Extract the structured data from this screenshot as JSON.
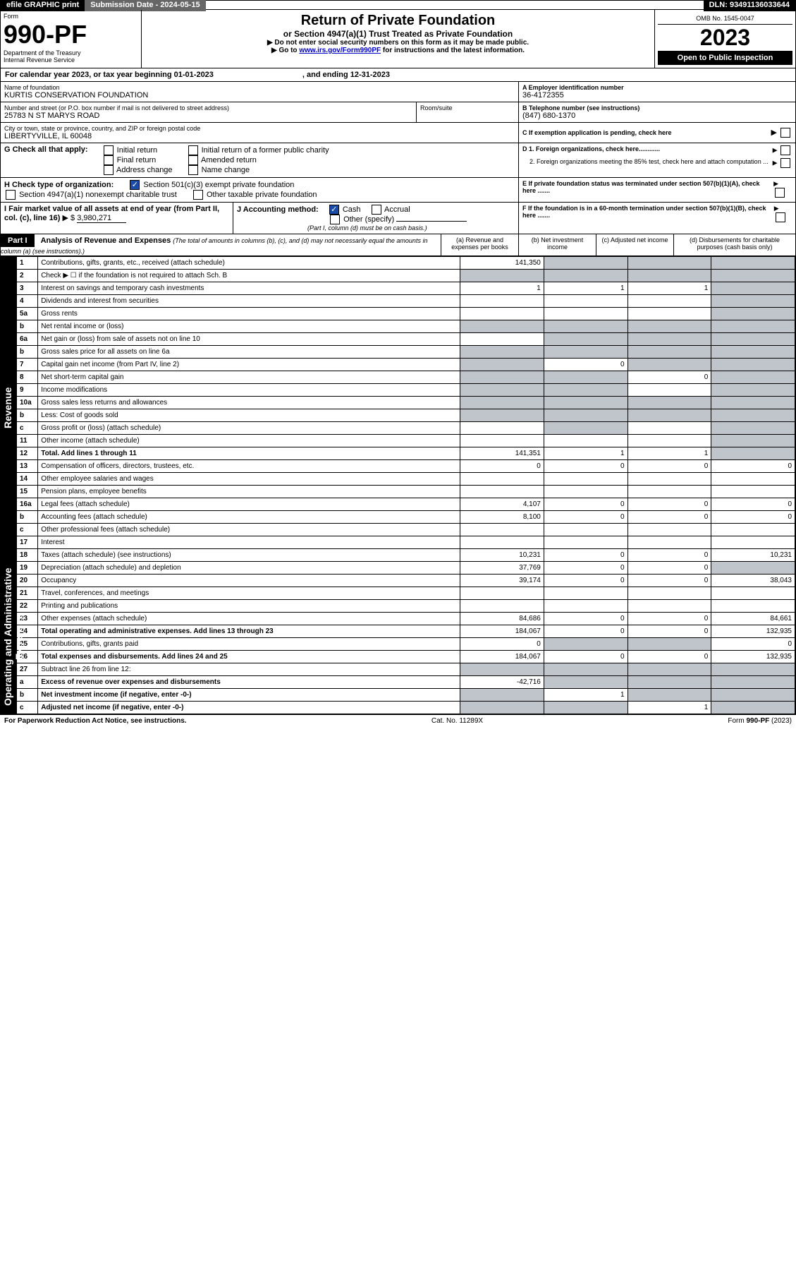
{
  "top": {
    "efile": "efile GRAPHIC print",
    "submission_label": "Submission Date - 2024-05-15",
    "dln_label": "DLN: 93491136033644"
  },
  "header": {
    "form_word": "Form",
    "form_no": "990-PF",
    "dept": "Department of the Treasury",
    "irs": "Internal Revenue Service",
    "title": "Return of Private Foundation",
    "subtitle": "or Section 4947(a)(1) Trust Treated as Private Foundation",
    "inst1": "▶ Do not enter social security numbers on this form as it may be made public.",
    "inst2_pre": "▶ Go to ",
    "inst2_link": "www.irs.gov/Form990PF",
    "inst2_post": " for instructions and the latest information.",
    "omb": "OMB No. 1545-0047",
    "year": "2023",
    "open": "Open to Public Inspection"
  },
  "cal": {
    "text": "For calendar year 2023, or tax year beginning 01-01-2023",
    "mid": ", and ending 12-31-2023"
  },
  "block_a": {
    "name_lbl": "Name of foundation",
    "name": "KURTIS CONSERVATION FOUNDATION",
    "a_lbl": "A Employer identification number",
    "ein": "36-4172355",
    "addr_lbl": "Number and street (or P.O. box number if mail is not delivered to street address)",
    "room_lbl": "Room/suite",
    "addr": "25783 N ST MARYS ROAD",
    "b_lbl": "B Telephone number (see instructions)",
    "phone": "(847) 680-1370",
    "city_lbl": "City or town, state or province, country, and ZIP or foreign postal code",
    "city": "LIBERTYVILLE, IL  60048",
    "c_lbl": "C If exemption application is pending, check here"
  },
  "g": {
    "label": "G Check all that apply:",
    "o1": "Initial return",
    "o2": "Final return",
    "o3": "Address change",
    "o4": "Initial return of a former public charity",
    "o5": "Amended return",
    "o6": "Name change"
  },
  "d": {
    "d1": "D 1. Foreign organizations, check here............",
    "d2": "2. Foreign organizations meeting the 85% test, check here and attach computation ..."
  },
  "h": {
    "label": "H Check type of organization:",
    "h1": "Section 501(c)(3) exempt private foundation",
    "h2": "Section 4947(a)(1) nonexempt charitable trust",
    "h3": "Other taxable private foundation"
  },
  "e": {
    "text": "E  If private foundation status was terminated under section 507(b)(1)(A), check here ......."
  },
  "i": {
    "label": "I Fair market value of all assets at end of year (from Part II, col. (c), line 16)",
    "amount": "3,980,271",
    "arrow": "▶ $"
  },
  "j": {
    "label": "J Accounting method:",
    "o1": "Cash",
    "o2": "Accrual",
    "o3": "Other (specify)",
    "note": "(Part I, column (d) must be on cash basis.)"
  },
  "f": {
    "text": "F  If the foundation is in a 60-month termination under section 507(b)(1)(B), check here ......."
  },
  "part1": {
    "label": "Part I",
    "title": "Analysis of Revenue and Expenses",
    "titlenote": "(The total of amounts in columns (b), (c), and (d) may not necessarily equal the amounts in column (a) (see instructions).)",
    "cols": {
      "a": "(a)   Revenue and expenses per books",
      "b": "(b)   Net investment income",
      "c": "(c)   Adjusted net income",
      "d": "(d)   Disbursements for charitable purposes (cash basis only)"
    }
  },
  "sidelabels": {
    "rev": "Revenue",
    "exp": "Operating and Administrative Expenses"
  },
  "rows": [
    {
      "n": "1",
      "d": "Contributions, gifts, grants, etc., received (attach schedule)",
      "a": "141,350",
      "b": "",
      "c": "",
      "dd": "",
      "shade_b": true,
      "shade_c": true,
      "shade_d": true
    },
    {
      "n": "2",
      "d": "Check ▶ ☐ if the foundation is not required to attach Sch. B",
      "a": "",
      "b": "",
      "c": "",
      "dd": "",
      "shade_a": true,
      "shade_b": true,
      "shade_c": true,
      "shade_d": true
    },
    {
      "n": "3",
      "d": "Interest on savings and temporary cash investments",
      "a": "1",
      "b": "1",
      "c": "1",
      "dd": "",
      "shade_d": true
    },
    {
      "n": "4",
      "d": "Dividends and interest from securities",
      "a": "",
      "b": "",
      "c": "",
      "dd": "",
      "shade_d": true
    },
    {
      "n": "5a",
      "d": "Gross rents",
      "a": "",
      "b": "",
      "c": "",
      "dd": "",
      "shade_d": true
    },
    {
      "n": "b",
      "d": "Net rental income or (loss)",
      "short": true,
      "a": "",
      "b": "",
      "c": "",
      "dd": "",
      "shade_a": true,
      "shade_b": true,
      "shade_c": true,
      "shade_d": true
    },
    {
      "n": "6a",
      "d": "Net gain or (loss) from sale of assets not on line 10",
      "a": "",
      "b": "",
      "c": "",
      "dd": "",
      "shade_b": true,
      "shade_c": true,
      "shade_d": true
    },
    {
      "n": "b",
      "d": "Gross sales price for all assets on line 6a",
      "short": true,
      "a": "",
      "b": "",
      "c": "",
      "dd": "",
      "shade_a": true,
      "shade_b": true,
      "shade_c": true,
      "shade_d": true
    },
    {
      "n": "7",
      "d": "Capital gain net income (from Part IV, line 2)",
      "a": "",
      "b": "0",
      "c": "",
      "dd": "",
      "shade_a": true,
      "shade_c": true,
      "shade_d": true
    },
    {
      "n": "8",
      "d": "Net short-term capital gain",
      "a": "",
      "b": "",
      "c": "0",
      "dd": "",
      "shade_a": true,
      "shade_b": true,
      "shade_d": true
    },
    {
      "n": "9",
      "d": "Income modifications",
      "a": "",
      "b": "",
      "c": "",
      "dd": "",
      "shade_a": true,
      "shade_b": true,
      "shade_d": true
    },
    {
      "n": "10a",
      "d": "Gross sales less returns and allowances",
      "short": true,
      "a": "",
      "b": "",
      "c": "",
      "dd": "",
      "shade_a": true,
      "shade_b": true,
      "shade_c": true,
      "shade_d": true
    },
    {
      "n": "b",
      "d": "Less: Cost of goods sold",
      "short": true,
      "a": "",
      "b": "",
      "c": "",
      "dd": "",
      "shade_a": true,
      "shade_b": true,
      "shade_c": true,
      "shade_d": true
    },
    {
      "n": "c",
      "d": "Gross profit or (loss) (attach schedule)",
      "a": "",
      "b": "",
      "c": "",
      "dd": "",
      "shade_b": true,
      "shade_d": true
    },
    {
      "n": "11",
      "d": "Other income (attach schedule)",
      "a": "",
      "b": "",
      "c": "",
      "dd": "",
      "shade_d": true
    },
    {
      "n": "12",
      "d": "Total. Add lines 1 through 11",
      "bold": true,
      "a": "141,351",
      "b": "1",
      "c": "1",
      "dd": "",
      "shade_d": true
    },
    {
      "n": "13",
      "d": "Compensation of officers, directors, trustees, etc.",
      "a": "0",
      "b": "0",
      "c": "0",
      "dd": "0"
    },
    {
      "n": "14",
      "d": "Other employee salaries and wages",
      "a": "",
      "b": "",
      "c": "",
      "dd": ""
    },
    {
      "n": "15",
      "d": "Pension plans, employee benefits",
      "a": "",
      "b": "",
      "c": "",
      "dd": ""
    },
    {
      "n": "16a",
      "d": "Legal fees (attach schedule)",
      "a": "4,107",
      "b": "0",
      "c": "0",
      "dd": "0"
    },
    {
      "n": "b",
      "d": "Accounting fees (attach schedule)",
      "a": "8,100",
      "b": "0",
      "c": "0",
      "dd": "0"
    },
    {
      "n": "c",
      "d": "Other professional fees (attach schedule)",
      "a": "",
      "b": "",
      "c": "",
      "dd": ""
    },
    {
      "n": "17",
      "d": "Interest",
      "a": "",
      "b": "",
      "c": "",
      "dd": ""
    },
    {
      "n": "18",
      "d": "Taxes (attach schedule) (see instructions)",
      "a": "10,231",
      "b": "0",
      "c": "0",
      "dd": "10,231"
    },
    {
      "n": "19",
      "d": "Depreciation (attach schedule) and depletion",
      "a": "37,769",
      "b": "0",
      "c": "0",
      "dd": "",
      "shade_d": true
    },
    {
      "n": "20",
      "d": "Occupancy",
      "a": "39,174",
      "b": "0",
      "c": "0",
      "dd": "38,043"
    },
    {
      "n": "21",
      "d": "Travel, conferences, and meetings",
      "a": "",
      "b": "",
      "c": "",
      "dd": ""
    },
    {
      "n": "22",
      "d": "Printing and publications",
      "a": "",
      "b": "",
      "c": "",
      "dd": ""
    },
    {
      "n": "23",
      "d": "Other expenses (attach schedule)",
      "a": "84,686",
      "b": "0",
      "c": "0",
      "dd": "84,661"
    },
    {
      "n": "24",
      "d": "Total operating and administrative expenses. Add lines 13 through 23",
      "bold": true,
      "a": "184,067",
      "b": "0",
      "c": "0",
      "dd": "132,935"
    },
    {
      "n": "25",
      "d": "Contributions, gifts, grants paid",
      "a": "0",
      "b": "",
      "c": "",
      "dd": "0",
      "shade_b": true,
      "shade_c": true
    },
    {
      "n": "26",
      "d": "Total expenses and disbursements. Add lines 24 and 25",
      "bold": true,
      "a": "184,067",
      "b": "0",
      "c": "0",
      "dd": "132,935"
    },
    {
      "n": "27",
      "d": "Subtract line 26 from line 12:",
      "a": "",
      "b": "",
      "c": "",
      "dd": "",
      "shade_a": true,
      "shade_b": true,
      "shade_c": true,
      "shade_d": true
    },
    {
      "n": "a",
      "d": "Excess of revenue over expenses and disbursements",
      "bold": true,
      "a": "-42,716",
      "b": "",
      "c": "",
      "dd": "",
      "shade_b": true,
      "shade_c": true,
      "shade_d": true
    },
    {
      "n": "b",
      "d": "Net investment income (if negative, enter -0-)",
      "bold": true,
      "a": "",
      "b": "1",
      "c": "",
      "dd": "",
      "shade_a": true,
      "shade_c": true,
      "shade_d": true
    },
    {
      "n": "c",
      "d": "Adjusted net income (if negative, enter -0-)",
      "bold": true,
      "a": "",
      "b": "",
      "c": "1",
      "dd": "",
      "shade_a": true,
      "shade_b": true,
      "shade_d": true
    }
  ],
  "footer": {
    "left": "For Paperwork Reduction Act Notice, see instructions.",
    "mid": "Cat. No. 11289X",
    "right": "Form 990-PF (2023)"
  }
}
